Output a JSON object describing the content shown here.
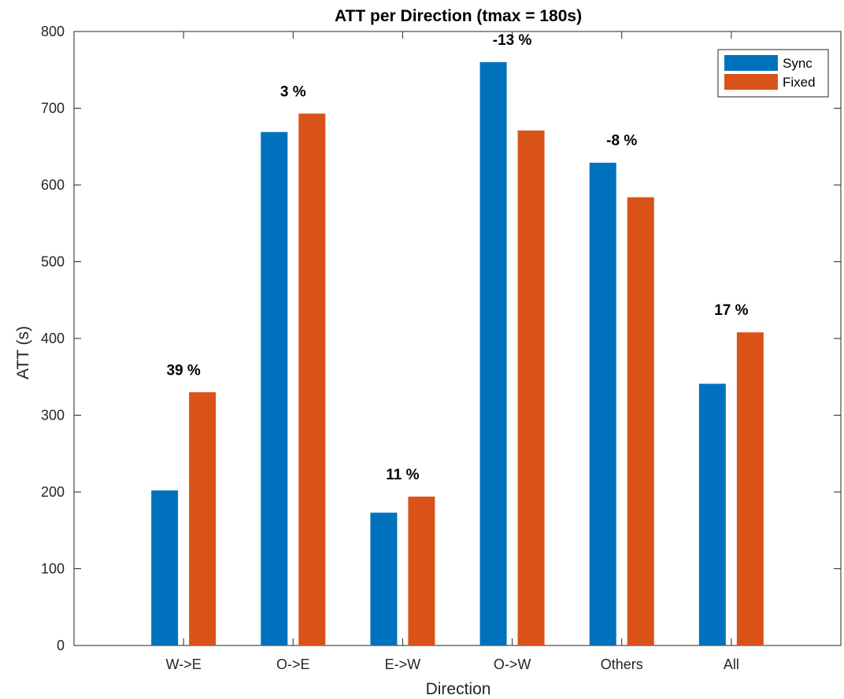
{
  "chart_data": {
    "type": "bar",
    "title": "ATT per Direction (tmax = 180s)",
    "xlabel": "Direction",
    "ylabel": "ATT (s)",
    "ylim": [
      0,
      800
    ],
    "yticks": [
      0,
      100,
      200,
      300,
      400,
      500,
      600,
      700,
      800
    ],
    "categories": [
      "W->E",
      "O->E",
      "E->W",
      "O->W",
      "Others",
      "All"
    ],
    "series": [
      {
        "name": "Sync",
        "color": "#0072BD",
        "values": [
          202,
          669,
          173,
          760,
          629,
          341
        ]
      },
      {
        "name": "Fixed",
        "color": "#D95319",
        "values": [
          330,
          693,
          194,
          671,
          584,
          408
        ]
      }
    ],
    "annotations": [
      "39 %",
      "3 %",
      "11 %",
      "-13 %",
      "-8 %",
      "17 %"
    ],
    "legend_position": "top-right",
    "grid": false
  }
}
